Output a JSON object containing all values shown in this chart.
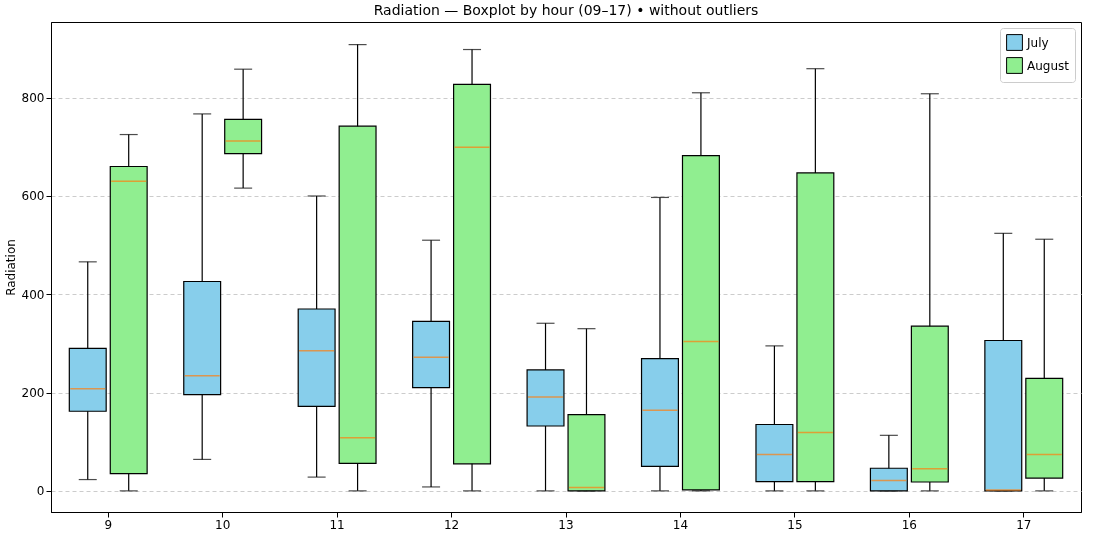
{
  "chart_data": {
    "type": "box",
    "title": "Radiation — Boxplot by hour (09–17) • without outliers",
    "ylabel": "Radiation",
    "categories": [
      "9",
      "10",
      "11",
      "12",
      "13",
      "14",
      "15",
      "16",
      "17"
    ],
    "ylim": [
      -43,
      954
    ],
    "yticks": [
      0,
      200,
      400,
      600,
      800
    ],
    "grid": "y",
    "legend": "top right",
    "series": [
      {
        "name": "July",
        "color": "#87ceeb",
        "boxes": [
          {
            "low": 23,
            "q1": 162,
            "median": 208,
            "q3": 290,
            "high": 466
          },
          {
            "low": 64,
            "q1": 196,
            "median": 234,
            "q3": 426,
            "high": 767
          },
          {
            "low": 28,
            "q1": 172,
            "median": 285,
            "q3": 370,
            "high": 600
          },
          {
            "low": 8,
            "q1": 210,
            "median": 272,
            "q3": 345,
            "high": 510
          },
          {
            "low": 0,
            "q1": 132,
            "median": 191,
            "q3": 246,
            "high": 341
          },
          {
            "low": 0,
            "q1": 50,
            "median": 164,
            "q3": 269,
            "high": 597
          },
          {
            "low": 0,
            "q1": 19,
            "median": 74,
            "q3": 135,
            "high": 295
          },
          {
            "low": 0,
            "q1": 0,
            "median": 21,
            "q3": 46,
            "high": 113
          },
          {
            "low": 0,
            "q1": 0,
            "median": 2,
            "q3": 306,
            "high": 524
          }
        ]
      },
      {
        "name": "August",
        "color": "#90ee90",
        "boxes": [
          {
            "low": 0,
            "q1": 35,
            "median": 630,
            "q3": 660,
            "high": 725
          },
          {
            "low": 616,
            "q1": 686,
            "median": 712,
            "q3": 756,
            "high": 858
          },
          {
            "low": 0,
            "q1": 56,
            "median": 108,
            "q3": 742,
            "high": 908
          },
          {
            "low": 0,
            "q1": 55,
            "median": 699,
            "q3": 827,
            "high": 898
          },
          {
            "low": 0,
            "q1": 0,
            "median": 7,
            "q3": 155,
            "high": 330
          },
          {
            "low": 0,
            "q1": 2,
            "median": 304,
            "q3": 682,
            "high": 810
          },
          {
            "low": 0,
            "q1": 19,
            "median": 119,
            "q3": 647,
            "high": 859
          },
          {
            "low": 0,
            "q1": 18,
            "median": 45,
            "q3": 335,
            "high": 808
          },
          {
            "low": 0,
            "q1": 26,
            "median": 74,
            "q3": 229,
            "high": 512
          }
        ]
      }
    ]
  }
}
